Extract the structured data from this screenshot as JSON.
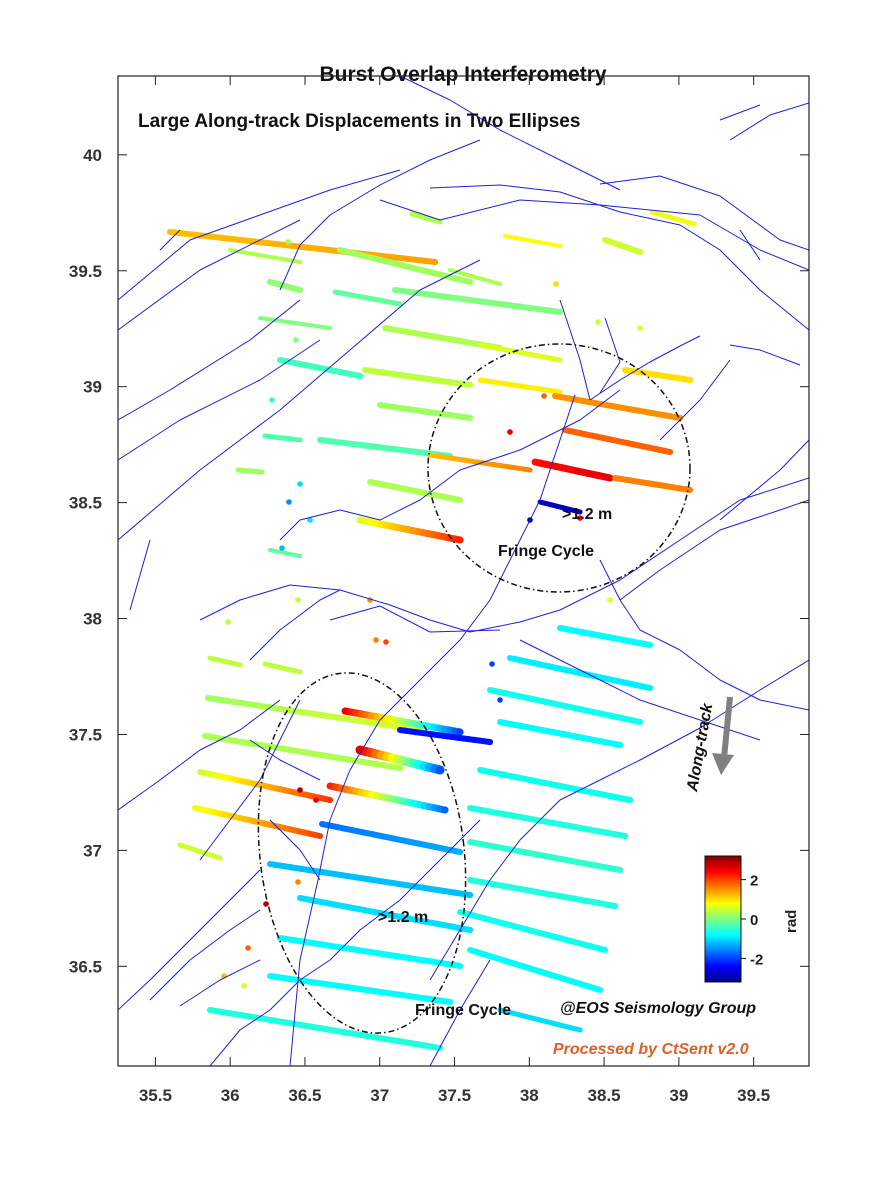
{
  "map": {
    "title": "Burst Overlap Interferometry",
    "subtitle": "Large Along-track Displacements in Two Ellipses",
    "x_ticks": [
      "35.5",
      "36",
      "36.5",
      "37",
      "37.5",
      "38",
      "38.5",
      "39",
      "39.5"
    ],
    "y_ticks": [
      "40",
      "39.5",
      "39",
      "38.5",
      "38",
      "37.5",
      "37",
      "36.5"
    ],
    "x_range": [
      35.25,
      39.87
    ],
    "y_range": [
      36.07,
      40.34
    ],
    "fault_color": "#1f1fd6"
  },
  "annotations": {
    "north_ellipse_label": "Fringe Cycle",
    "north_displacement": ">1.2 m",
    "south_ellipse_label": "Fringe Cycle",
    "south_displacement": ">1.2 m",
    "direction_label": "Along-track",
    "direction_arrow_color": "#808080"
  },
  "colorbar": {
    "unit": "rad",
    "ticks": [
      "2",
      "0",
      "-2"
    ],
    "range": [
      -3.2,
      3.2
    ],
    "colormap": "jet"
  },
  "credits": {
    "group": "@EOS Seismology Group",
    "software": "Processed by CtSent v2.0",
    "software_color": "#d9622b"
  }
}
